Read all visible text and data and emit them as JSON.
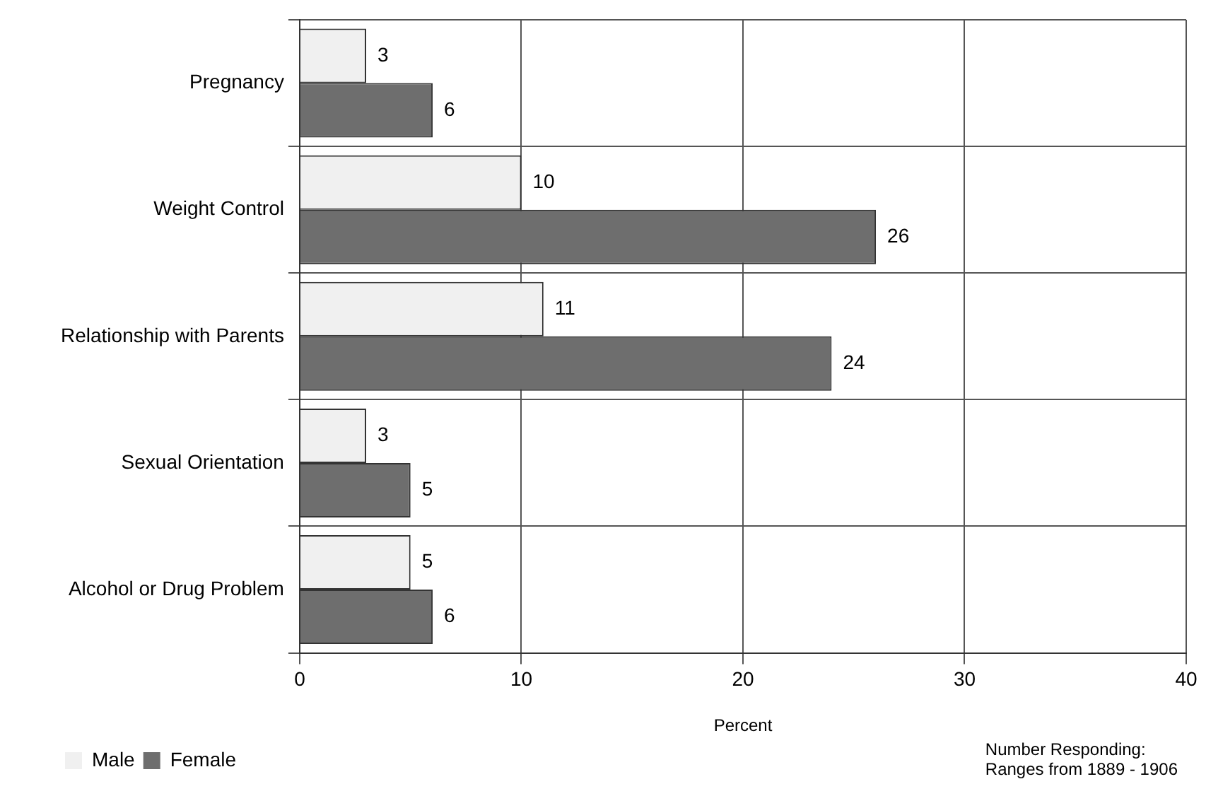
{
  "chart_data": {
    "type": "bar",
    "orientation": "horizontal",
    "xlabel": "Percent",
    "categories": [
      "Pregnancy",
      "Weight Control",
      "Relationship with Parents",
      "Sexual Orientation",
      "Alcohol or Drug Problem"
    ],
    "series": [
      {
        "name": "Male",
        "color": "#f0f0f0",
        "values": [
          3,
          10,
          11,
          3,
          5
        ]
      },
      {
        "name": "Female",
        "color": "#6e6e6e",
        "values": [
          6,
          26,
          24,
          5,
          6
        ]
      }
    ],
    "xlim": [
      0,
      40
    ],
    "xticks": [
      0,
      10,
      20,
      30,
      40
    ],
    "grid": true,
    "data_labels": true,
    "legend": "bottom left",
    "annotations": [
      "Number Responding:\nRanges from 1889 - 1906"
    ]
  }
}
